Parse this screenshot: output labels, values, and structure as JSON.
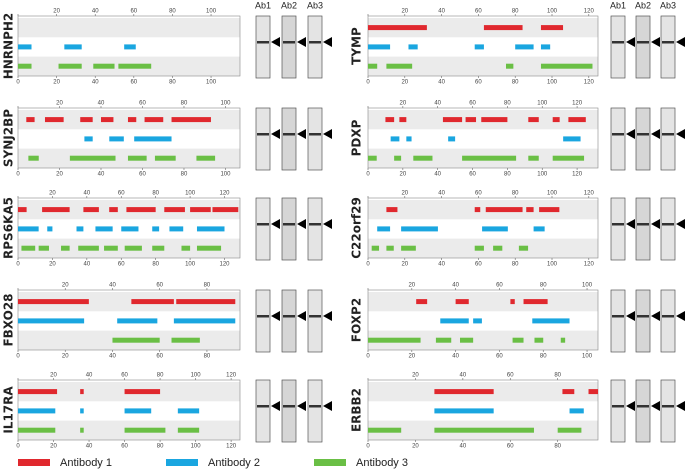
{
  "blot_labels": [
    "Ab1",
    "Ab2",
    "Ab3"
  ],
  "chart_data": [
    {
      "type": "range",
      "title": "HNRNPH2",
      "xlim": [
        0,
        115
      ],
      "xticks": [
        0,
        20,
        40,
        60,
        80,
        100
      ],
      "series": [
        {
          "name": "Antibody 1",
          "color": "#e0282e",
          "values": []
        },
        {
          "name": "Antibody 2",
          "color": "#1aa6e0",
          "values": [
            [
              0,
              7
            ],
            [
              24,
              33
            ],
            [
              55,
              61
            ]
          ]
        },
        {
          "name": "Antibody 3",
          "color": "#6abf45",
          "values": [
            [
              0,
              7
            ],
            [
              21,
              33
            ],
            [
              39,
              50
            ],
            [
              52,
              69
            ]
          ]
        }
      ]
    },
    {
      "type": "range",
      "title": "SYNJ2BP",
      "xlim": [
        0,
        107
      ],
      "xticks": [
        0,
        20,
        40,
        60,
        80,
        100
      ],
      "series": [
        {
          "name": "Antibody 1",
          "color": "#e0282e",
          "values": [
            [
              4,
              8
            ],
            [
              13,
              22
            ],
            [
              30,
              36
            ],
            [
              40,
              46
            ],
            [
              53,
              57
            ],
            [
              61,
              70
            ],
            [
              74,
              93
            ]
          ]
        },
        {
          "name": "Antibody 2",
          "color": "#1aa6e0",
          "values": [
            [
              32,
              36
            ],
            [
              44,
              51
            ],
            [
              56,
              74
            ]
          ]
        },
        {
          "name": "Antibody 3",
          "color": "#6abf45",
          "values": [
            [
              5,
              10
            ],
            [
              25,
              47
            ],
            [
              53,
              62
            ],
            [
              66,
              76
            ],
            [
              86,
              95
            ]
          ]
        }
      ]
    },
    {
      "type": "range",
      "title": "RPS6KA5",
      "xlim": [
        0,
        129
      ],
      "xticks": [
        0,
        20,
        40,
        60,
        80,
        100,
        120
      ],
      "series": [
        {
          "name": "Antibody 1",
          "color": "#e0282e",
          "values": [
            [
              0,
              5
            ],
            [
              14,
              30
            ],
            [
              38,
              47
            ],
            [
              53,
              58
            ],
            [
              63,
              80
            ],
            [
              85,
              97
            ],
            [
              100,
              112
            ],
            [
              113,
              128
            ]
          ]
        },
        {
          "name": "Antibody 2",
          "color": "#1aa6e0",
          "values": [
            [
              0,
              12
            ],
            [
              17,
              20
            ],
            [
              34,
              38
            ],
            [
              45,
              55
            ],
            [
              60,
              70
            ],
            [
              78,
              82
            ],
            [
              88,
              96
            ],
            [
              104,
              120
            ]
          ]
        },
        {
          "name": "Antibody 3",
          "color": "#6abf45",
          "values": [
            [
              2,
              10
            ],
            [
              12,
              18
            ],
            [
              25,
              30
            ],
            [
              35,
              47
            ],
            [
              50,
              58
            ],
            [
              62,
              72
            ],
            [
              78,
              85
            ],
            [
              95,
              100
            ],
            [
              104,
              118
            ]
          ]
        }
      ]
    },
    {
      "type": "range",
      "title": "FBXO28",
      "xlim": [
        0,
        94
      ],
      "xticks": [
        0,
        20,
        40,
        60,
        80
      ],
      "series": [
        {
          "name": "Antibody 1",
          "color": "#e0282e",
          "values": [
            [
              0,
              30
            ],
            [
              48,
              66
            ],
            [
              67,
              92
            ]
          ]
        },
        {
          "name": "Antibody 2",
          "color": "#1aa6e0",
          "values": [
            [
              0,
              28
            ],
            [
              42,
              59
            ],
            [
              66,
              92
            ]
          ]
        },
        {
          "name": "Antibody 3",
          "color": "#6abf45",
          "values": [
            [
              40,
              60
            ],
            [
              65,
              77
            ]
          ]
        }
      ]
    },
    {
      "type": "range",
      "title": "IL17RA",
      "xlim": [
        0,
        125
      ],
      "xticks": [
        0,
        20,
        40,
        60,
        80,
        100,
        120
      ],
      "series": [
        {
          "name": "Antibody 1",
          "color": "#e0282e",
          "values": [
            [
              0,
              22
            ],
            [
              35,
              37
            ],
            [
              60,
              80
            ]
          ]
        },
        {
          "name": "Antibody 2",
          "color": "#1aa6e0",
          "values": [
            [
              0,
              21
            ],
            [
              35,
              37
            ],
            [
              60,
              75
            ],
            [
              90,
              102
            ]
          ]
        },
        {
          "name": "Antibody 3",
          "color": "#6abf45",
          "values": [
            [
              0,
              21
            ],
            [
              35,
              37
            ],
            [
              60,
              83
            ],
            [
              90,
              102
            ]
          ]
        }
      ]
    },
    {
      "type": "range",
      "title": "TYMP",
      "xlim": [
        0,
        125
      ],
      "xticks": [
        0,
        20,
        40,
        60,
        80,
        100,
        120
      ],
      "series": [
        {
          "name": "Antibody 1",
          "color": "#e0282e",
          "values": [
            [
              0,
              32
            ],
            [
              63,
              84
            ],
            [
              94,
              106
            ]
          ]
        },
        {
          "name": "Antibody 2",
          "color": "#1aa6e0",
          "values": [
            [
              0,
              12
            ],
            [
              22,
              27
            ],
            [
              58,
              63
            ],
            [
              80,
              90
            ],
            [
              94,
              99
            ]
          ]
        },
        {
          "name": "Antibody 3",
          "color": "#6abf45",
          "values": [
            [
              0,
              5
            ],
            [
              10,
              24
            ],
            [
              75,
              79
            ],
            [
              94,
              122
            ]
          ]
        }
      ]
    },
    {
      "type": "range",
      "title": "PDXP",
      "xlim": [
        0,
        132
      ],
      "xticks": [
        0,
        20,
        40,
        60,
        80,
        100,
        120
      ],
      "series": [
        {
          "name": "Antibody 1",
          "color": "#e0282e",
          "values": [
            [
              10,
              15
            ],
            [
              18,
              22
            ],
            [
              43,
              54
            ],
            [
              56,
              62
            ],
            [
              65,
              80
            ],
            [
              92,
              98
            ],
            [
              106,
              110
            ],
            [
              115,
              125
            ]
          ]
        },
        {
          "name": "Antibody 2",
          "color": "#1aa6e0",
          "values": [
            [
              13,
              18
            ],
            [
              22,
              25
            ],
            [
              46,
              50
            ],
            [
              112,
              122
            ]
          ]
        },
        {
          "name": "Antibody 3",
          "color": "#6abf45",
          "values": [
            [
              0,
              5
            ],
            [
              15,
              19
            ],
            [
              26,
              37
            ],
            [
              54,
              85
            ],
            [
              92,
              98
            ],
            [
              106,
              124
            ]
          ]
        }
      ]
    },
    {
      "type": "range",
      "title": "C22orf29",
      "xlim": [
        0,
        125
      ],
      "xticks": [
        0,
        20,
        40,
        60,
        80,
        100,
        120
      ],
      "series": [
        {
          "name": "Antibody 1",
          "color": "#e0282e",
          "values": [
            [
              10,
              16
            ],
            [
              58,
              61
            ],
            [
              64,
              84
            ],
            [
              86,
              90
            ],
            [
              93,
              104
            ]
          ]
        },
        {
          "name": "Antibody 2",
          "color": "#1aa6e0",
          "values": [
            [
              5,
              12
            ],
            [
              18,
              38
            ],
            [
              62,
              76
            ],
            [
              90,
              96
            ]
          ]
        },
        {
          "name": "Antibody 3",
          "color": "#6abf45",
          "values": [
            [
              2,
              6
            ],
            [
              10,
              14
            ],
            [
              18,
              26
            ],
            [
              58,
              63
            ],
            [
              68,
              73
            ],
            [
              82,
              87
            ]
          ]
        }
      ]
    },
    {
      "type": "range",
      "title": "FOXP2",
      "xlim": [
        0,
        105
      ],
      "xticks": [
        0,
        20,
        40,
        60,
        80,
        100
      ],
      "series": [
        {
          "name": "Antibody 1",
          "color": "#e0282e",
          "values": [
            [
              22,
              27
            ],
            [
              40,
              46
            ],
            [
              65,
              67
            ],
            [
              71,
              82
            ]
          ]
        },
        {
          "name": "Antibody 2",
          "color": "#1aa6e0",
          "values": [
            [
              33,
              46
            ],
            [
              48,
              52
            ],
            [
              75,
              92
            ]
          ]
        },
        {
          "name": "Antibody 3",
          "color": "#6abf45",
          "values": [
            [
              0,
              24
            ],
            [
              31,
              38
            ],
            [
              42,
              48
            ],
            [
              66,
              71
            ],
            [
              76,
              80
            ],
            [
              88,
              90
            ]
          ]
        }
      ]
    },
    {
      "type": "range",
      "title": "ERBB2",
      "xlim": [
        0,
        97
      ],
      "xticks": [
        0,
        20,
        40,
        60,
        80
      ],
      "series": [
        {
          "name": "Antibody 1",
          "color": "#e0282e",
          "values": [
            [
              28,
              53
            ],
            [
              82,
              87
            ],
            [
              93,
              97
            ]
          ]
        },
        {
          "name": "Antibody 2",
          "color": "#1aa6e0",
          "values": [
            [
              28,
              53
            ],
            [
              85,
              91
            ]
          ]
        },
        {
          "name": "Antibody 3",
          "color": "#6abf45",
          "values": [
            [
              0,
              14
            ],
            [
              28,
              70
            ],
            [
              80,
              90
            ]
          ]
        }
      ]
    }
  ]
}
